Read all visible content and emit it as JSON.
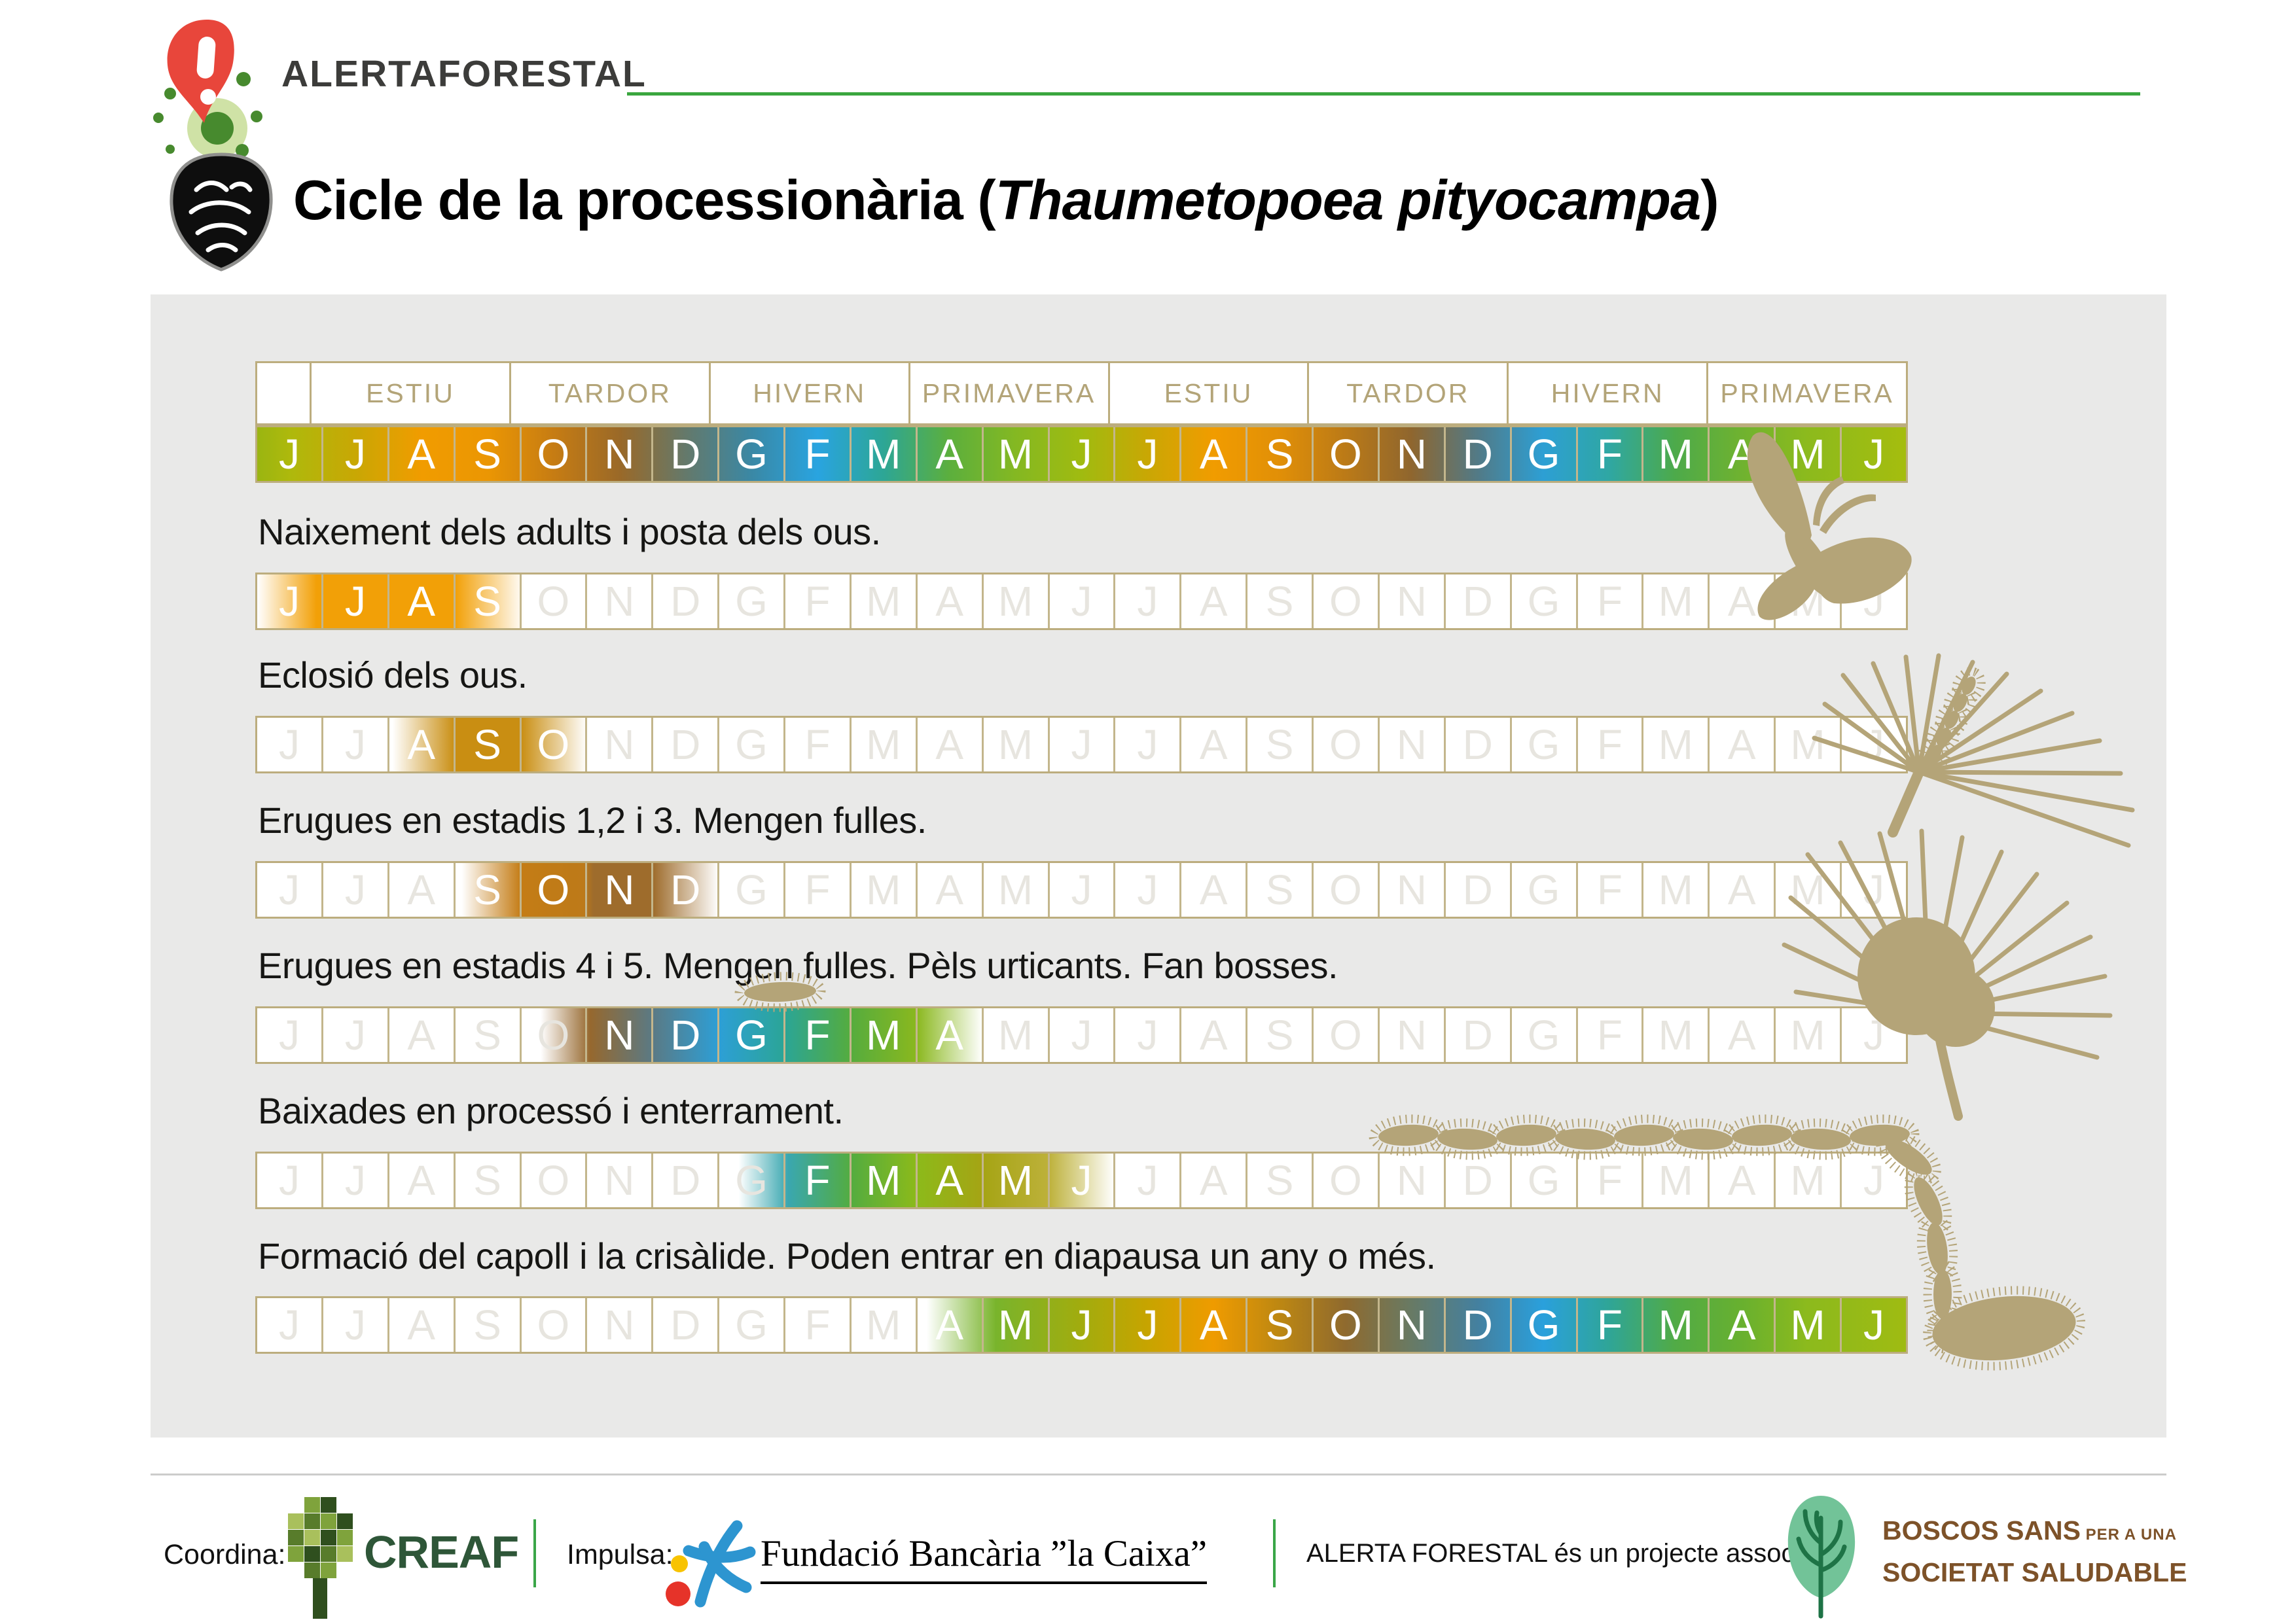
{
  "brand": {
    "name": "ALERTAFORESTAL"
  },
  "title": {
    "pre": "Cicle de la processionària (",
    "italic": "Thaumetopoea pityocampa",
    "post": ")"
  },
  "calendar": {
    "seasons": [
      "ESTIU",
      "TARDOR",
      "HIVERN",
      "PRIMAVERA",
      "ESTIU",
      "TARDOR",
      "HIVERN",
      "PRIMAVERA"
    ],
    "months": [
      "J",
      "J",
      "A",
      "S",
      "O",
      "N",
      "D",
      "G",
      "F",
      "M",
      "A",
      "M",
      "J",
      "J",
      "A",
      "S",
      "O",
      "N",
      "D",
      "G",
      "F",
      "M",
      "A",
      "M",
      "J"
    ],
    "header_stops": [
      [
        0,
        "#9ab511"
      ],
      [
        0.5,
        "#aeb90c"
      ],
      [
        1.5,
        "#c9a704"
      ],
      [
        2.5,
        "#f19c00"
      ],
      [
        3.5,
        "#eb9603"
      ],
      [
        4.5,
        "#c67c13"
      ],
      [
        5.5,
        "#9a6928"
      ],
      [
        6.5,
        "#64796b"
      ],
      [
        7.5,
        "#3a88a5"
      ],
      [
        8.5,
        "#29a4e0"
      ],
      [
        9.5,
        "#2da695"
      ],
      [
        10.5,
        "#5caf3d"
      ],
      [
        11.5,
        "#84b822"
      ],
      [
        12.5,
        "#a0bb10"
      ],
      [
        13.5,
        "#c9a704"
      ],
      [
        14.5,
        "#f19c00"
      ],
      [
        15.5,
        "#e18f07"
      ],
      [
        16.5,
        "#bb7a17"
      ],
      [
        17.5,
        "#8f662e"
      ],
      [
        18.5,
        "#527a86"
      ],
      [
        19.5,
        "#2d9fd4"
      ],
      [
        20.5,
        "#2fa7a3"
      ],
      [
        21.5,
        "#4daa4a"
      ],
      [
        22.5,
        "#6fb230"
      ],
      [
        23.5,
        "#8cba1d"
      ],
      [
        25,
        "#a5bd0e"
      ]
    ]
  },
  "rows": [
    {
      "label": "Naixement dels adults i posta dels ous.",
      "stops": [
        [
          0,
          "#ffffff"
        ],
        [
          0.9,
          "#f2a007"
        ],
        [
          3.0,
          "#f2a007"
        ],
        [
          4.05,
          "#ffffff"
        ],
        [
          25,
          "#ffffff"
        ]
      ],
      "active": [
        0,
        3
      ]
    },
    {
      "label": "Eclosió dels ous.",
      "stops": [
        [
          0,
          "#ffffff"
        ],
        [
          2.05,
          "#ffffff"
        ],
        [
          3.0,
          "#c98e12"
        ],
        [
          4.0,
          "#c98e12"
        ],
        [
          5.0,
          "#ffffff"
        ],
        [
          25,
          "#ffffff"
        ]
      ],
      "active": [
        2,
        4
      ]
    },
    {
      "label": "Erugues en estadis 1,2 i 3. Mengen fulles.",
      "stops": [
        [
          0,
          "#ffffff"
        ],
        [
          3.1,
          "#ffffff"
        ],
        [
          4.0,
          "#c47c15"
        ],
        [
          4.95,
          "#bd7a19"
        ],
        [
          5.1,
          "#9e6c2c"
        ],
        [
          6.0,
          "#9e6c2c"
        ],
        [
          7.0,
          "#ffffff"
        ],
        [
          25,
          "#ffffff"
        ]
      ],
      "active": [
        3,
        6
      ]
    },
    {
      "label": "Erugues en estadis 4 i 5. Mengen fulles. Pèls urticants. Fan bosses.",
      "stops": [
        [
          0,
          "#ffffff"
        ],
        [
          4.3,
          "#ffffff"
        ],
        [
          5.05,
          "#96682e"
        ],
        [
          6.0,
          "#5a7a85"
        ],
        [
          7.0,
          "#2d9fd6"
        ],
        [
          8.0,
          "#2ba596"
        ],
        [
          9.0,
          "#55ac3e"
        ],
        [
          10.0,
          "#8ab81e"
        ],
        [
          11.0,
          "#ffffff"
        ],
        [
          25,
          "#ffffff"
        ]
      ],
      "active": [
        5,
        10
      ]
    },
    {
      "label": "Baixades en processó i enterrament.",
      "stops": [
        [
          0,
          "#ffffff"
        ],
        [
          7.3,
          "#ffffff"
        ],
        [
          8.05,
          "#3aa7b0"
        ],
        [
          9.0,
          "#53ac40"
        ],
        [
          10.0,
          "#8cba1a"
        ],
        [
          11.0,
          "#a5a414"
        ],
        [
          12.0,
          "#bdb13a"
        ],
        [
          13.0,
          "#ffffff"
        ],
        [
          25,
          "#ffffff"
        ]
      ],
      "active": [
        8,
        12
      ]
    },
    {
      "label": "Formació del capoll i la crisàlide. Poden entrar en diapausa un any o més.",
      "stops": [
        [
          0,
          "#ffffff"
        ],
        [
          10.15,
          "#ffffff"
        ],
        [
          11.2,
          "#79b42c"
        ],
        [
          12.5,
          "#a2ac0e"
        ],
        [
          13.5,
          "#c7a400"
        ],
        [
          14.5,
          "#ef9b00"
        ],
        [
          15.5,
          "#bd8712"
        ],
        [
          16.5,
          "#8f6a2e"
        ],
        [
          17.5,
          "#687a64"
        ],
        [
          18.5,
          "#44809f"
        ],
        [
          19.5,
          "#2aa0dc"
        ],
        [
          20.5,
          "#2fa597"
        ],
        [
          21.5,
          "#51ab46"
        ],
        [
          22.5,
          "#68b02f"
        ],
        [
          23.5,
          "#8cba1d"
        ],
        [
          25,
          "#9fbb12"
        ]
      ],
      "active": [
        10,
        24
      ]
    }
  ],
  "footer": {
    "coordina_label": "Coordina:",
    "creaf_name": "CREAF",
    "impulsa_label": "Impulsa:",
    "caixa_name": "Fundació Bancària ”la Caixa”",
    "associat_text": "ALERTA FORESTAL és un projecte associat a:",
    "boscos_line1": "BOSCOS SANS",
    "boscos_small": " PER A UNA",
    "boscos_line2": "SOCIETAT SALUDABLE"
  },
  "colors": {
    "tan_silhouette": "#b4a478",
    "panel_gray": "#e9e9e8",
    "green_line": "#3aa63f",
    "creaf_green": "#2e5638",
    "boscos_brown": "#7d5229",
    "alert_red": "#e8463b",
    "caixa_blue": "#2d95d0"
  }
}
